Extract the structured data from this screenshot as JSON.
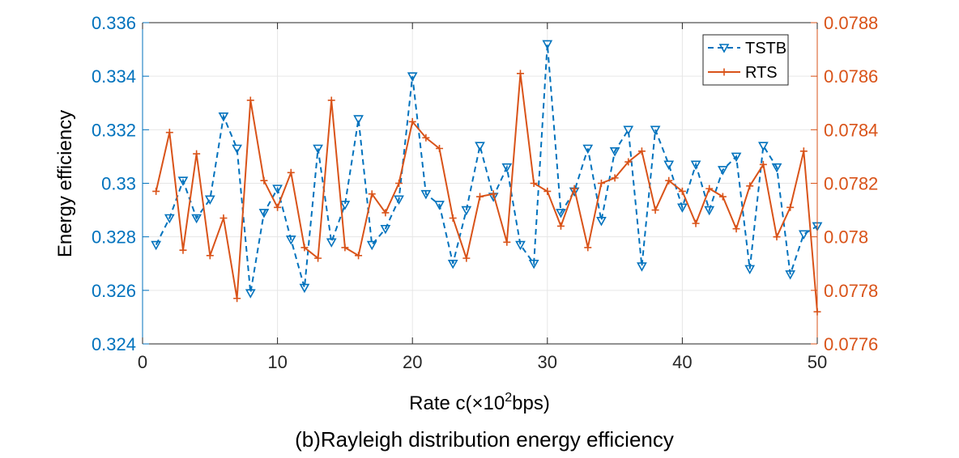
{
  "chart_data": {
    "type": "line",
    "caption": "(b)Rayleigh distribution energy efficiency",
    "xlabel": {
      "prefix": "Rate c(×10",
      "sup": "2",
      "suffix": "bps)"
    },
    "ylabel_left": "Energy efficiency",
    "xlim": [
      0,
      50
    ],
    "ylim_left": [
      0.324,
      0.336
    ],
    "ylim_right": [
      0.0776,
      0.0788
    ],
    "x_ticks": [
      "0",
      "10",
      "20",
      "30",
      "40",
      "50"
    ],
    "y_left_ticks": [
      "0.324",
      "0.326",
      "0.328",
      "0.33",
      "0.332",
      "0.334",
      "0.336"
    ],
    "y_right_ticks": [
      "0.0776",
      "0.0778",
      "0.078",
      "0.0782",
      "0.0784",
      "0.0786",
      "0.0788"
    ],
    "grid": true,
    "legend_position": "top-right",
    "x": [
      1,
      2,
      3,
      4,
      5,
      6,
      7,
      8,
      9,
      10,
      11,
      12,
      13,
      14,
      15,
      16,
      17,
      18,
      19,
      20,
      21,
      22,
      23,
      24,
      25,
      26,
      27,
      28,
      29,
      30,
      31,
      32,
      33,
      34,
      35,
      36,
      37,
      38,
      39,
      40,
      41,
      42,
      43,
      44,
      45,
      46,
      47,
      48,
      49,
      50
    ],
    "series": [
      {
        "name": "TSTB",
        "axis": "left",
        "color": "#0072BD",
        "line_style": "dashed",
        "marker": "triangle-down",
        "values": [
          0.3277,
          0.3287,
          0.3301,
          0.3287,
          0.3294,
          0.3325,
          0.3313,
          0.3259,
          0.3289,
          0.3298,
          0.3279,
          0.3261,
          0.3313,
          0.3278,
          0.3292,
          0.3324,
          0.3277,
          0.3283,
          0.3294,
          0.334,
          0.3296,
          0.3292,
          0.327,
          0.329,
          0.3314,
          0.3295,
          0.3306,
          0.3277,
          0.327,
          0.3352,
          0.3289,
          0.3297,
          0.3313,
          0.3286,
          0.3312,
          0.332,
          0.3269,
          0.332,
          0.3307,
          0.3291,
          0.3307,
          0.329,
          0.3305,
          0.331,
          0.3268,
          0.3314,
          0.3306,
          0.3266,
          0.3281,
          0.3284
        ]
      },
      {
        "name": "RTS",
        "axis": "right",
        "color": "#D95319",
        "line_style": "solid",
        "marker": "plus",
        "values": [
          0.07817,
          0.07839,
          0.07795,
          0.07831,
          0.07793,
          0.07807,
          0.07777,
          0.07851,
          0.07821,
          0.07811,
          0.07824,
          0.07796,
          0.07792,
          0.07851,
          0.07796,
          0.07793,
          0.07816,
          0.07809,
          0.0782,
          0.07843,
          0.07837,
          0.07833,
          0.07807,
          0.07792,
          0.07815,
          0.07816,
          0.07798,
          0.07861,
          0.0782,
          0.07817,
          0.07804,
          0.07818,
          0.07796,
          0.0782,
          0.07822,
          0.07828,
          0.07832,
          0.0781,
          0.07821,
          0.07817,
          0.07805,
          0.07818,
          0.07815,
          0.07803,
          0.07819,
          0.07827,
          0.078,
          0.07811,
          0.07832,
          0.07772
        ]
      }
    ]
  }
}
